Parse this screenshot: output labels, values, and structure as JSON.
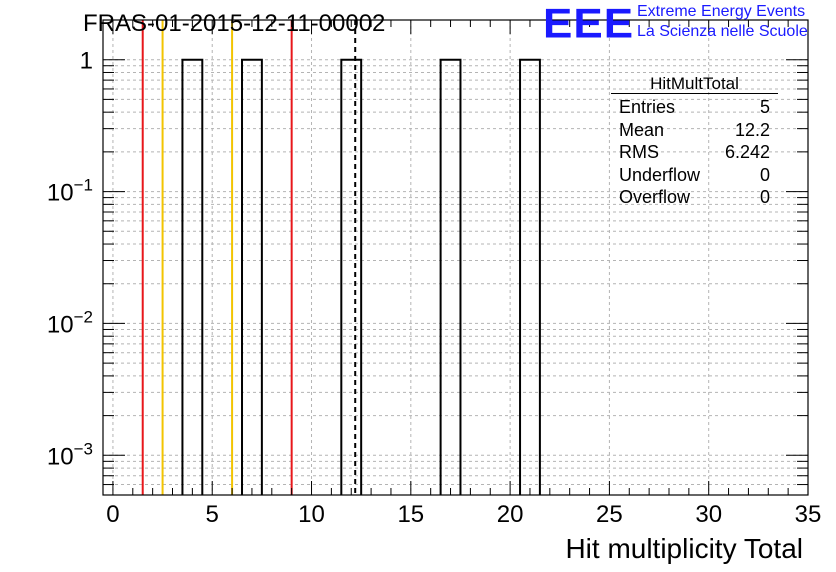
{
  "title": "FRAS-01-2015-12-11-00002",
  "logo": {
    "mark": "EEE",
    "line1": "Extreme Energy Events",
    "line2": "La Scienza nelle Scuole"
  },
  "stats": {
    "name": "HitMultTotal",
    "rows": [
      {
        "label": "Entries",
        "value": "5"
      },
      {
        "label": "Mean",
        "value": "12.2"
      },
      {
        "label": "RMS",
        "value": "6.242"
      },
      {
        "label": "Underflow",
        "value": "0"
      },
      {
        "label": "Overflow",
        "value": "0"
      }
    ]
  },
  "chart_data": {
    "type": "bar",
    "title": "FRAS-01-2015-12-11-00002",
    "xlabel": "Hit multiplicity Total",
    "ylabel": "",
    "xlim": [
      -0.5,
      35
    ],
    "ylim": [
      0.0005,
      2
    ],
    "yscale": "log",
    "grid": true,
    "xticks": [
      0,
      5,
      10,
      15,
      20,
      25,
      30,
      35
    ],
    "xtick_labels": [
      "0",
      "5",
      "10",
      "15",
      "20",
      "25",
      "30",
      "35"
    ],
    "yticks": [
      {
        "value": 1,
        "label": "1"
      },
      {
        "value": 0.1,
        "base": "10",
        "exp": "−1"
      },
      {
        "value": 0.01,
        "base": "10",
        "exp": "−2"
      },
      {
        "value": 0.001,
        "base": "10",
        "exp": "−3"
      }
    ],
    "bins": [
      {
        "x0": 3.5,
        "x1": 4.5,
        "value": 1
      },
      {
        "x0": 6.5,
        "x1": 7.5,
        "value": 1
      },
      {
        "x0": 11.5,
        "x1": 12.5,
        "value": 1
      },
      {
        "x0": 16.5,
        "x1": 17.5,
        "value": 1
      },
      {
        "x0": 20.5,
        "x1": 21.5,
        "value": 1
      }
    ],
    "vlines": [
      {
        "x": 1.5,
        "color": "#e8171b",
        "style": "solid"
      },
      {
        "x": 2.5,
        "color": "#f2c400",
        "style": "solid"
      },
      {
        "x": 6.0,
        "color": "#f2c400",
        "style": "solid"
      },
      {
        "x": 9.0,
        "color": "#e8171b",
        "style": "solid"
      },
      {
        "x": 12.2,
        "color": "#000000",
        "style": "dashed"
      }
    ]
  }
}
